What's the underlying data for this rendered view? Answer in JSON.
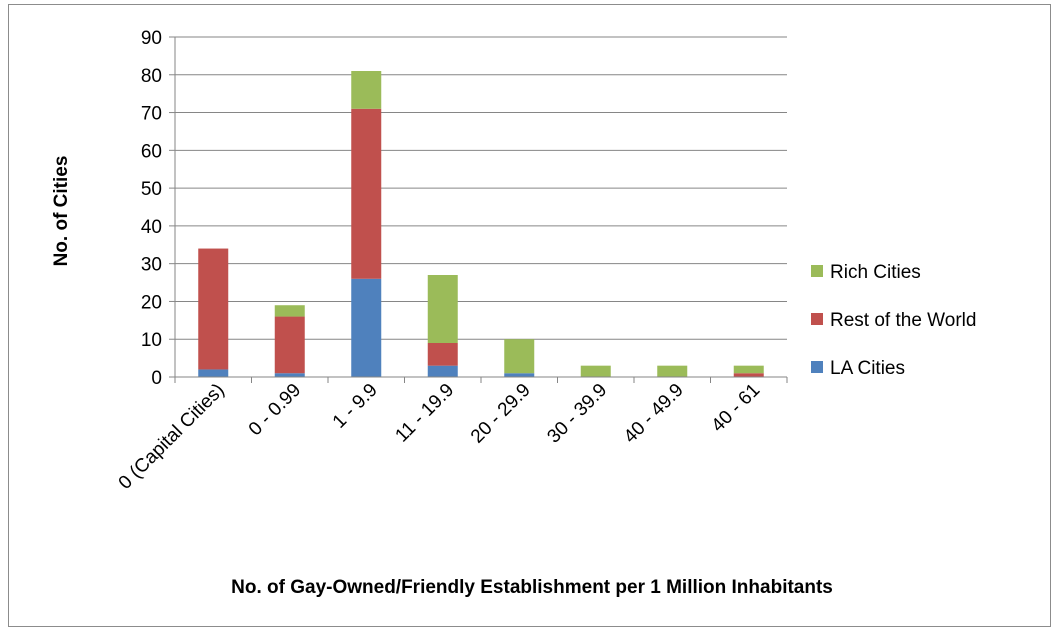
{
  "chart_data": {
    "type": "bar",
    "stacked": true,
    "title": "",
    "xlabel": "No. of Gay-Owned/Friendly Establishment per 1 Million Inhabitants",
    "ylabel": "No. of Cities",
    "ylim": [
      0,
      90
    ],
    "yticks": [
      0,
      10,
      20,
      30,
      40,
      50,
      60,
      70,
      80,
      90
    ],
    "grid": true,
    "legend_position": "right",
    "categories": [
      "0 (Capital Cities)",
      "0 - 0.99",
      "1 - 9.9",
      "11 - 19.9",
      "20 - 29.9",
      "30 - 39.9",
      "40 - 49.9",
      "40 - 61"
    ],
    "series": [
      {
        "name": "LA Cities",
        "color": "#4f81bd",
        "values": [
          2,
          1,
          26,
          3,
          1,
          0,
          0,
          0
        ]
      },
      {
        "name": "Rest of the World",
        "color": "#c0504d",
        "values": [
          32,
          15,
          45,
          6,
          0,
          0,
          0,
          1
        ]
      },
      {
        "name": "Rich Cities",
        "color": "#9bbb59",
        "values": [
          0,
          3,
          10,
          18,
          9,
          3,
          3,
          2
        ]
      }
    ],
    "legend_order": [
      "Rich Cities",
      "Rest of the World",
      "LA Cities"
    ]
  }
}
